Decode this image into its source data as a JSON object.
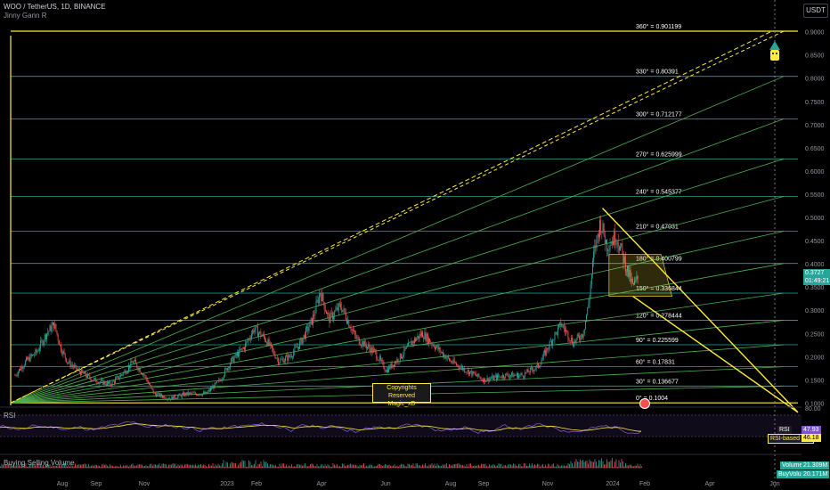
{
  "header": {
    "title": "WOO / TetherUS, 1D, BINANCE",
    "indicator": "Jinny Gann R"
  },
  "currency_button": "USDT",
  "copyright": {
    "line1": "Copyrights Reserved",
    "line2": "Magic_xD"
  },
  "rsi_pane": {
    "label": "RSI",
    "rsi_tag_label": "RSI",
    "rsi_value": "47.93",
    "ma_tag_label": "RSI-based MA",
    "ma_value": "46.18",
    "upper_tick": "80.00"
  },
  "volume_pane": {
    "label": "Buying Selling Volume",
    "volume_tag_label": "Volume",
    "volume_value": "21.309M",
    "sub_tag_label": "BuyVolume",
    "sub_value": "20.171M"
  },
  "price_tag": {
    "price": "0.3727",
    "countdown": "01:49:21"
  },
  "colors": {
    "gann_fan": "#4caf50",
    "levels": "#26a69a",
    "yellow": "#ffeb3b",
    "up_candle": "#26a69a",
    "down_candle": "#ef5350",
    "price_tag": "#26a69a",
    "rsi_line": "#7e57c2",
    "rsi_ma": "#ffeb3b"
  },
  "chart_data": {
    "type": "candlestick",
    "title": "WOO / TetherUS, 1D, BINANCE",
    "x_ticks": [
      "Aug",
      "Sep",
      "Nov",
      "2023",
      "Feb",
      "Apr",
      "Jun",
      "Aug",
      "Sep",
      "Nov",
      "2024",
      "Feb",
      "Apr",
      "Jun"
    ],
    "y_ticks": [
      "0.9000",
      "0.8500",
      "0.8000",
      "0.7500",
      "0.7000",
      "0.6500",
      "0.6000",
      "0.5500",
      "0.5000",
      "0.4500",
      "0.4000",
      "0.3500",
      "0.3000",
      "0.2500",
      "0.2000",
      "0.1500",
      "0.1000"
    ],
    "ylim": [
      0.095,
      0.93
    ],
    "gann_levels": [
      {
        "label": "0° = 0.1004",
        "value": 0.1004
      },
      {
        "label": "30° = 0.136677",
        "value": 0.136677
      },
      {
        "label": "60° = 0.17831",
        "value": 0.17831
      },
      {
        "label": "90° = 0.225599",
        "value": 0.225599
      },
      {
        "label": "120° = 0.278444",
        "value": 0.278444
      },
      {
        "label": "150° = 0.336844",
        "value": 0.336844
      },
      {
        "label": "180° = 0.400799",
        "value": 0.400799
      },
      {
        "label": "210° = 0.47031",
        "value": 0.47031
      },
      {
        "label": "240° = 0.545377",
        "value": 0.545377
      },
      {
        "label": "270° = 0.625999",
        "value": 0.625999
      },
      {
        "label": "300° = 0.712177",
        "value": 0.712177
      },
      {
        "label": "330° = 0.80391",
        "value": 0.80391
      },
      {
        "label": "360° = 0.901199",
        "value": 0.901199
      }
    ],
    "price_path": [
      [
        "2022-07-05",
        0.16
      ],
      [
        "2022-07-15",
        0.19
      ],
      [
        "2022-07-25",
        0.21
      ],
      [
        "2022-08-03",
        0.25
      ],
      [
        "2022-08-10",
        0.27
      ],
      [
        "2022-08-16",
        0.22
      ],
      [
        "2022-08-22",
        0.19
      ],
      [
        "2022-09-01",
        0.17
      ],
      [
        "2022-09-15",
        0.15
      ],
      [
        "2022-10-01",
        0.14
      ],
      [
        "2022-10-15",
        0.17
      ],
      [
        "2022-10-22",
        0.19
      ],
      [
        "2022-11-01",
        0.16
      ],
      [
        "2022-11-10",
        0.12
      ],
      [
        "2022-11-25",
        0.11
      ],
      [
        "2022-12-10",
        0.12
      ],
      [
        "2022-12-28",
        0.12
      ],
      [
        "2023-01-10",
        0.15
      ],
      [
        "2023-01-20",
        0.19
      ],
      [
        "2023-02-01",
        0.22
      ],
      [
        "2023-02-10",
        0.26
      ],
      [
        "2023-02-20",
        0.24
      ],
      [
        "2023-03-05",
        0.19
      ],
      [
        "2023-03-15",
        0.2
      ],
      [
        "2023-03-25",
        0.23
      ],
      [
        "2023-04-05",
        0.28
      ],
      [
        "2023-04-12",
        0.34
      ],
      [
        "2023-04-20",
        0.28
      ],
      [
        "2023-05-01",
        0.31
      ],
      [
        "2023-05-15",
        0.24
      ],
      [
        "2023-06-01",
        0.21
      ],
      [
        "2023-06-12",
        0.17
      ],
      [
        "2023-06-25",
        0.2
      ],
      [
        "2023-07-05",
        0.23
      ],
      [
        "2023-07-15",
        0.25
      ],
      [
        "2023-07-28",
        0.22
      ],
      [
        "2023-08-10",
        0.19
      ],
      [
        "2023-08-25",
        0.17
      ],
      [
        "2023-09-10",
        0.15
      ],
      [
        "2023-09-30",
        0.16
      ],
      [
        "2023-10-15",
        0.16
      ],
      [
        "2023-10-30",
        0.18
      ],
      [
        "2023-11-10",
        0.23
      ],
      [
        "2023-11-20",
        0.27
      ],
      [
        "2023-12-01",
        0.23
      ],
      [
        "2023-12-10",
        0.25
      ],
      [
        "2023-12-15",
        0.31
      ],
      [
        "2023-12-20",
        0.42
      ],
      [
        "2023-12-26",
        0.49
      ],
      [
        "2024-01-01",
        0.44
      ],
      [
        "2024-01-10",
        0.46
      ],
      [
        "2024-01-18",
        0.4
      ],
      [
        "2024-01-25",
        0.35
      ],
      [
        "2024-01-30",
        0.37
      ]
    ],
    "pattern": {
      "triangle": [
        [
          "2023-12-28",
          0.52
        ],
        [
          "2024-06-25",
          0.08
        ],
        [
          "2024-01-25",
          0.33
        ]
      ],
      "rectangle": [
        [
          "2024-01-03",
          0.42
        ],
        [
          "2024-01-28",
          0.33
        ]
      ]
    },
    "dashed_line": [
      [
        "2022-07-01",
        0.1004
      ],
      [
        "2024-06-01",
        0.901199
      ]
    ]
  }
}
